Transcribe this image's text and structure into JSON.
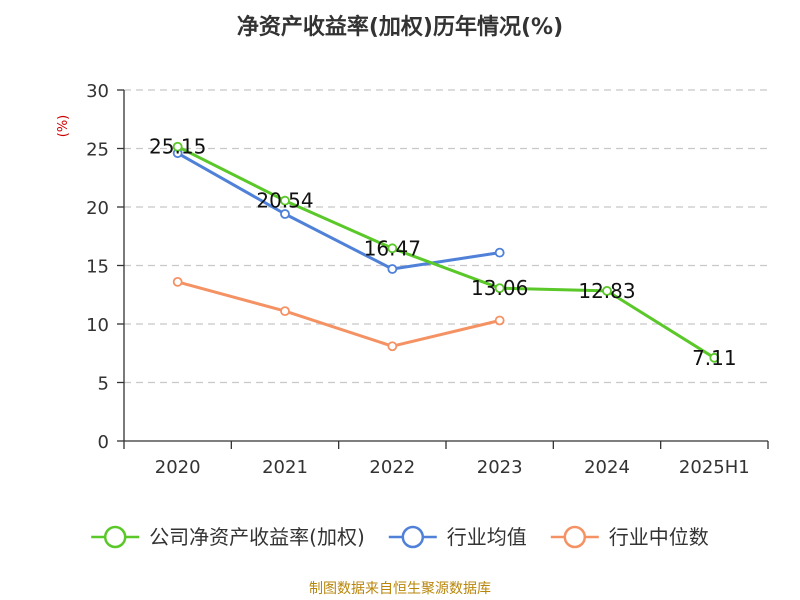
{
  "chart_data": {
    "type": "line",
    "title": "净资产收益率(加权)历年情况(%)",
    "ylabel": "(%)",
    "categories": [
      "2020",
      "2021",
      "2022",
      "2023",
      "2024",
      "2025H1"
    ],
    "ylim": [
      0,
      30
    ],
    "yticks": [
      0,
      5,
      10,
      15,
      20,
      25,
      30
    ],
    "grid": true,
    "legend_position": "bottom",
    "series": [
      {
        "name": "公司净资产收益率(加权)",
        "color": "#5ac828",
        "values": [
          25.15,
          20.54,
          16.47,
          13.06,
          12.83,
          7.11
        ],
        "labels": [
          "25.15",
          "20.54",
          "16.47",
          "13.06",
          "12.83",
          "7.11"
        ]
      },
      {
        "name": "行业均值",
        "color": "#4f81d9",
        "values": [
          24.6,
          19.4,
          14.7,
          16.1,
          null,
          null
        ]
      },
      {
        "name": "行业中位数",
        "color": "#f59263",
        "values": [
          13.6,
          11.1,
          8.1,
          10.3,
          null,
          null
        ]
      }
    ]
  },
  "footer": {
    "source": "制图数据来自恒生聚源数据库"
  }
}
